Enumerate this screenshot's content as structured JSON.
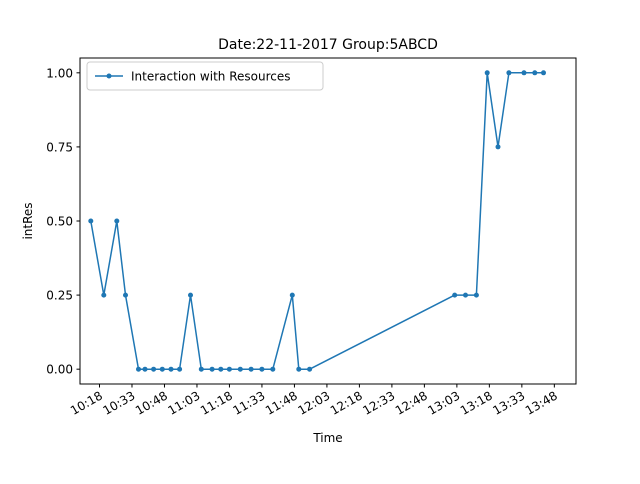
{
  "chart_data": {
    "type": "line",
    "title": "Date:22-11-2017  Group:5ABCD",
    "xlabel": "Time",
    "ylabel": "intRes",
    "x_tick_labels": [
      "10:18",
      "10:33",
      "10:48",
      "11:03",
      "11:18",
      "11:33",
      "11:48",
      "12:03",
      "12:18",
      "12:33",
      "12:48",
      "13:03",
      "13:18",
      "13:33",
      "13:48"
    ],
    "x_range": [
      "10:09",
      "13:58"
    ],
    "y_ticks": [
      "0.00",
      "0.25",
      "0.50",
      "0.75",
      "1.00"
    ],
    "ylim": [
      -0.05,
      1.05
    ],
    "grid": false,
    "legend_position": "top-left",
    "series": [
      {
        "name": "Interaction with Resources",
        "color": "#1f77b4",
        "x": [
          "10:14",
          "10:20",
          "10:26",
          "10:30",
          "10:36",
          "10:39",
          "10:43",
          "10:47",
          "10:51",
          "10:55",
          "11:00",
          "11:05",
          "11:10",
          "11:14",
          "11:18",
          "11:23",
          "11:28",
          "11:33",
          "11:38",
          "11:47",
          "11:50",
          "11:55",
          "13:02",
          "13:07",
          "13:12",
          "13:17",
          "13:22",
          "13:27",
          "13:34",
          "13:39",
          "13:43"
        ],
        "values": [
          0.5,
          0.25,
          0.5,
          0.25,
          0.0,
          0.0,
          0.0,
          0.0,
          0.0,
          0.0,
          0.25,
          0.0,
          0.0,
          0.0,
          0.0,
          0.0,
          0.0,
          0.0,
          0.0,
          0.25,
          0.0,
          0.0,
          0.25,
          0.25,
          0.25,
          1.0,
          0.75,
          1.0,
          1.0,
          1.0,
          1.0
        ]
      }
    ]
  }
}
